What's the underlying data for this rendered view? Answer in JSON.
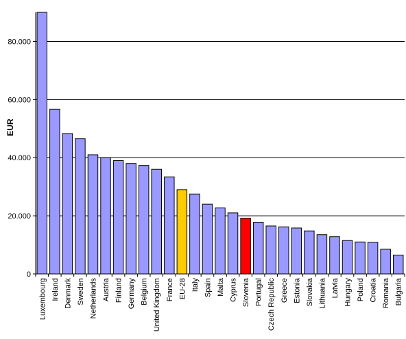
{
  "chart_data": {
    "type": "bar",
    "title": "",
    "xlabel": "",
    "ylabel": "EUR",
    "ylim": [
      0,
      90000
    ],
    "y_ticks": [
      0,
      20000,
      40000,
      60000,
      80000
    ],
    "y_tick_labels": [
      "0",
      "20.000",
      "40.000",
      "60.000",
      "80.000"
    ],
    "grid": true,
    "colors": {
      "default": "#9999ff",
      "highlight_eu": "#ffcc00",
      "highlight_si": "#ff0000",
      "outline": "#000000"
    },
    "categories": [
      "Luxembourg",
      "Ireland",
      "Denmark",
      "Sweden",
      "Netherlands",
      "Austria",
      "Finland",
      "Germany",
      "Belgium",
      "United Kingdom",
      "France",
      "EU-28",
      "Italy",
      "Spain",
      "Malta",
      "Cyprus",
      "Slovenia",
      "Portugal",
      "Czech Republic",
      "Greece",
      "Estonia",
      "Slovakia",
      "Lithuania",
      "Latvia",
      "Hungary",
      "Poland",
      "Croatia",
      "Romania",
      "Bulgaria"
    ],
    "values": [
      90000,
      56700,
      48300,
      46500,
      41000,
      40000,
      39000,
      38000,
      37300,
      36000,
      33400,
      29000,
      27500,
      24000,
      22700,
      21000,
      19200,
      17800,
      16500,
      16200,
      15800,
      14800,
      13500,
      12800,
      11500,
      11000,
      10900,
      8500,
      6500
    ],
    "bar_colors": [
      "default",
      "default",
      "default",
      "default",
      "default",
      "default",
      "default",
      "default",
      "default",
      "default",
      "default",
      "highlight_eu",
      "default",
      "default",
      "default",
      "default",
      "highlight_si",
      "default",
      "default",
      "default",
      "default",
      "default",
      "default",
      "default",
      "default",
      "default",
      "default",
      "default",
      "default"
    ]
  }
}
